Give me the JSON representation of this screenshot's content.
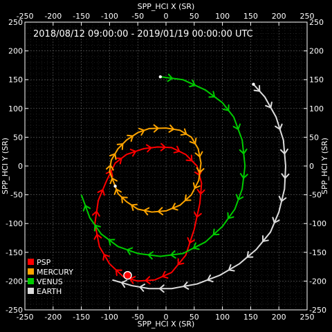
{
  "chart_data": {
    "type": "line",
    "title": "2018/08/12 09:00:00 - 2019/01/19 00:00:00 UTC",
    "xlabel": "SPP_HCI X (SR)",
    "ylabel": "SPP_HCI Y (SR)",
    "xlim": [
      -250,
      250
    ],
    "ylim": [
      -250,
      250
    ],
    "ticks": [
      -250,
      -200,
      -150,
      -100,
      -50,
      0,
      50,
      100,
      150,
      200,
      250
    ],
    "grid": true,
    "legend_position": "bottom-left",
    "background": "#000000",
    "series": [
      {
        "name": "PSP",
        "color": "#ff0000",
        "points": [
          [
            -75,
            -193
          ],
          [
            -100,
            -170
          ],
          [
            -118,
            -140
          ],
          [
            -126,
            -100
          ],
          [
            -120,
            -60
          ],
          [
            -105,
            -25
          ],
          [
            -90,
            5
          ],
          [
            -70,
            20
          ],
          [
            -40,
            30
          ],
          [
            -15,
            33
          ],
          [
            10,
            32
          ],
          [
            35,
            20
          ],
          [
            55,
            0
          ],
          [
            63,
            -30
          ],
          [
            60,
            -65
          ],
          [
            50,
            -110
          ],
          [
            35,
            -155
          ],
          [
            10,
            -185
          ],
          [
            -20,
            -198
          ],
          [
            -50,
            -200
          ],
          [
            -75,
            -193
          ]
        ]
      },
      {
        "name": "MERCURY",
        "color": "#ffa500",
        "points": [
          [
            -90,
            -35
          ],
          [
            -100,
            -10
          ],
          [
            -97,
            10
          ],
          [
            -85,
            30
          ],
          [
            -70,
            45
          ],
          [
            -50,
            58
          ],
          [
            -30,
            65
          ],
          [
            0,
            66
          ],
          [
            25,
            62
          ],
          [
            45,
            50
          ],
          [
            57,
            30
          ],
          [
            62,
            5
          ],
          [
            58,
            -25
          ],
          [
            45,
            -50
          ],
          [
            25,
            -68
          ],
          [
            0,
            -78
          ],
          [
            -25,
            -80
          ],
          [
            -50,
            -75
          ],
          [
            -70,
            -62
          ],
          [
            -85,
            -48
          ],
          [
            -90,
            -35
          ]
        ]
      },
      {
        "name": "VENUS",
        "color": "#00cc00",
        "points": [
          [
            -10,
            155
          ],
          [
            30,
            150
          ],
          [
            70,
            132
          ],
          [
            100,
            110
          ],
          [
            120,
            85
          ],
          [
            135,
            45
          ],
          [
            140,
            0
          ],
          [
            135,
            -40
          ],
          [
            122,
            -75
          ],
          [
            100,
            -105
          ],
          [
            70,
            -132
          ],
          [
            30,
            -152
          ],
          [
            -10,
            -157
          ],
          [
            -50,
            -152
          ],
          [
            -85,
            -140
          ],
          [
            -115,
            -118
          ],
          [
            -135,
            -90
          ],
          [
            -150,
            -50
          ]
        ]
      },
      {
        "name": "EARTH",
        "color": "#dddddd",
        "points": [
          [
            155,
            142
          ],
          [
            175,
            120
          ],
          [
            195,
            85
          ],
          [
            208,
            45
          ],
          [
            212,
            0
          ],
          [
            210,
            -40
          ],
          [
            200,
            -80
          ],
          [
            185,
            -115
          ],
          [
            160,
            -145
          ],
          [
            130,
            -170
          ],
          [
            95,
            -190
          ],
          [
            55,
            -205
          ],
          [
            10,
            -213
          ],
          [
            -30,
            -213
          ],
          [
            -60,
            -208
          ],
          [
            -95,
            -198
          ]
        ]
      }
    ],
    "markers": [
      {
        "series": "PSP",
        "x": -68,
        "y": -190,
        "color": "#ff0000",
        "style": "large-dot"
      },
      {
        "series": "MERCURY",
        "x": -90,
        "y": -35,
        "color": "#ffffff",
        "style": "small-dot"
      },
      {
        "series": "VENUS",
        "x": -10,
        "y": 155,
        "color": "#ffffff",
        "style": "small-dot"
      },
      {
        "series": "EARTH",
        "x": 155,
        "y": 142,
        "color": "#ffffff",
        "style": "small-dot"
      }
    ]
  }
}
